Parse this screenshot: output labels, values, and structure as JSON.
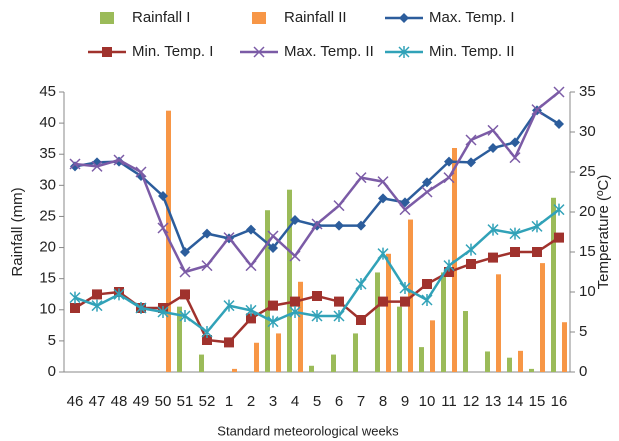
{
  "chart_data": {
    "type": "bar_line",
    "xlabel": "Standard meteorological weeks",
    "ylabel": "Rainfall (mm)",
    "y2label": "Temperature (ºC)",
    "categories": [
      "46",
      "47",
      "48",
      "49",
      "50",
      "51",
      "52",
      "1",
      "2",
      "3",
      "4",
      "5",
      "6",
      "7",
      "8",
      "9",
      "10",
      "11",
      "12",
      "13",
      "14",
      "15",
      "16"
    ],
    "ylim": [
      0,
      45
    ],
    "yticks": [
      0,
      5,
      10,
      15,
      20,
      25,
      30,
      35,
      40,
      45
    ],
    "y2lim": [
      0,
      35
    ],
    "y2ticks": [
      0,
      5,
      10,
      15,
      20,
      25,
      30,
      35
    ],
    "series": [
      {
        "name": "Rainfall I",
        "type": "bar",
        "color": "#9bbb59",
        "values": [
          0,
          0,
          0,
          0,
          0,
          10.5,
          2.8,
          0,
          0,
          26,
          29.3,
          1,
          2.8,
          6.2,
          16,
          10.5,
          4,
          16,
          9.8,
          3.3,
          2.3,
          0.5,
          28
        ]
      },
      {
        "name": "Rainfall II",
        "type": "bar",
        "color": "#f79646",
        "values": [
          0,
          0,
          0,
          0,
          42,
          0,
          0,
          0.5,
          4.7,
          6.2,
          14.5,
          0,
          0,
          0,
          19,
          24.5,
          8.3,
          36,
          0,
          15.7,
          3.4,
          17.5,
          8
        ]
      },
      {
        "name": "Max. Temp. I",
        "type": "line",
        "axis": "y2",
        "color": "#2c5d9c",
        "marker": "diamond",
        "values": [
          25.7,
          26.2,
          26.3,
          24.5,
          22,
          15,
          17.3,
          16.7,
          17.8,
          15.5,
          19,
          18.3,
          18.3,
          18.3,
          21.7,
          21.2,
          23.7,
          26.3,
          26.2,
          28,
          28.7,
          32.7,
          31
        ]
      },
      {
        "name": "Min. Temp. I",
        "type": "line",
        "axis": "y2",
        "color": "#a0322d",
        "marker": "square",
        "values": [
          8,
          9.7,
          10,
          8,
          8,
          9.7,
          4,
          3.7,
          6.7,
          8.3,
          8.8,
          9.5,
          8.8,
          6.5,
          8.8,
          8.8,
          11,
          12.5,
          13.5,
          14.3,
          15,
          15,
          16.8
        ]
      },
      {
        "name": "Max. Temp. II",
        "type": "line",
        "axis": "y2",
        "color": "#7b5ba6",
        "marker": "x",
        "values": [
          26,
          25.7,
          26.5,
          25,
          18,
          12.5,
          13.3,
          16.8,
          13.3,
          17,
          14.5,
          18.5,
          20.8,
          24.3,
          23.8,
          20.3,
          22.5,
          24.3,
          29,
          30.2,
          26.8,
          32.8,
          35
        ]
      },
      {
        "name": "Min. Temp. II",
        "type": "line",
        "axis": "y2",
        "color": "#31a2b8",
        "marker": "star",
        "values": [
          9.3,
          8.3,
          9.7,
          8,
          7.5,
          7,
          5,
          8.3,
          7.7,
          6.3,
          7.5,
          7,
          7,
          11,
          14.8,
          10.5,
          9,
          13.3,
          15.3,
          17.8,
          17.3,
          18.2,
          20.3
        ]
      }
    ]
  }
}
